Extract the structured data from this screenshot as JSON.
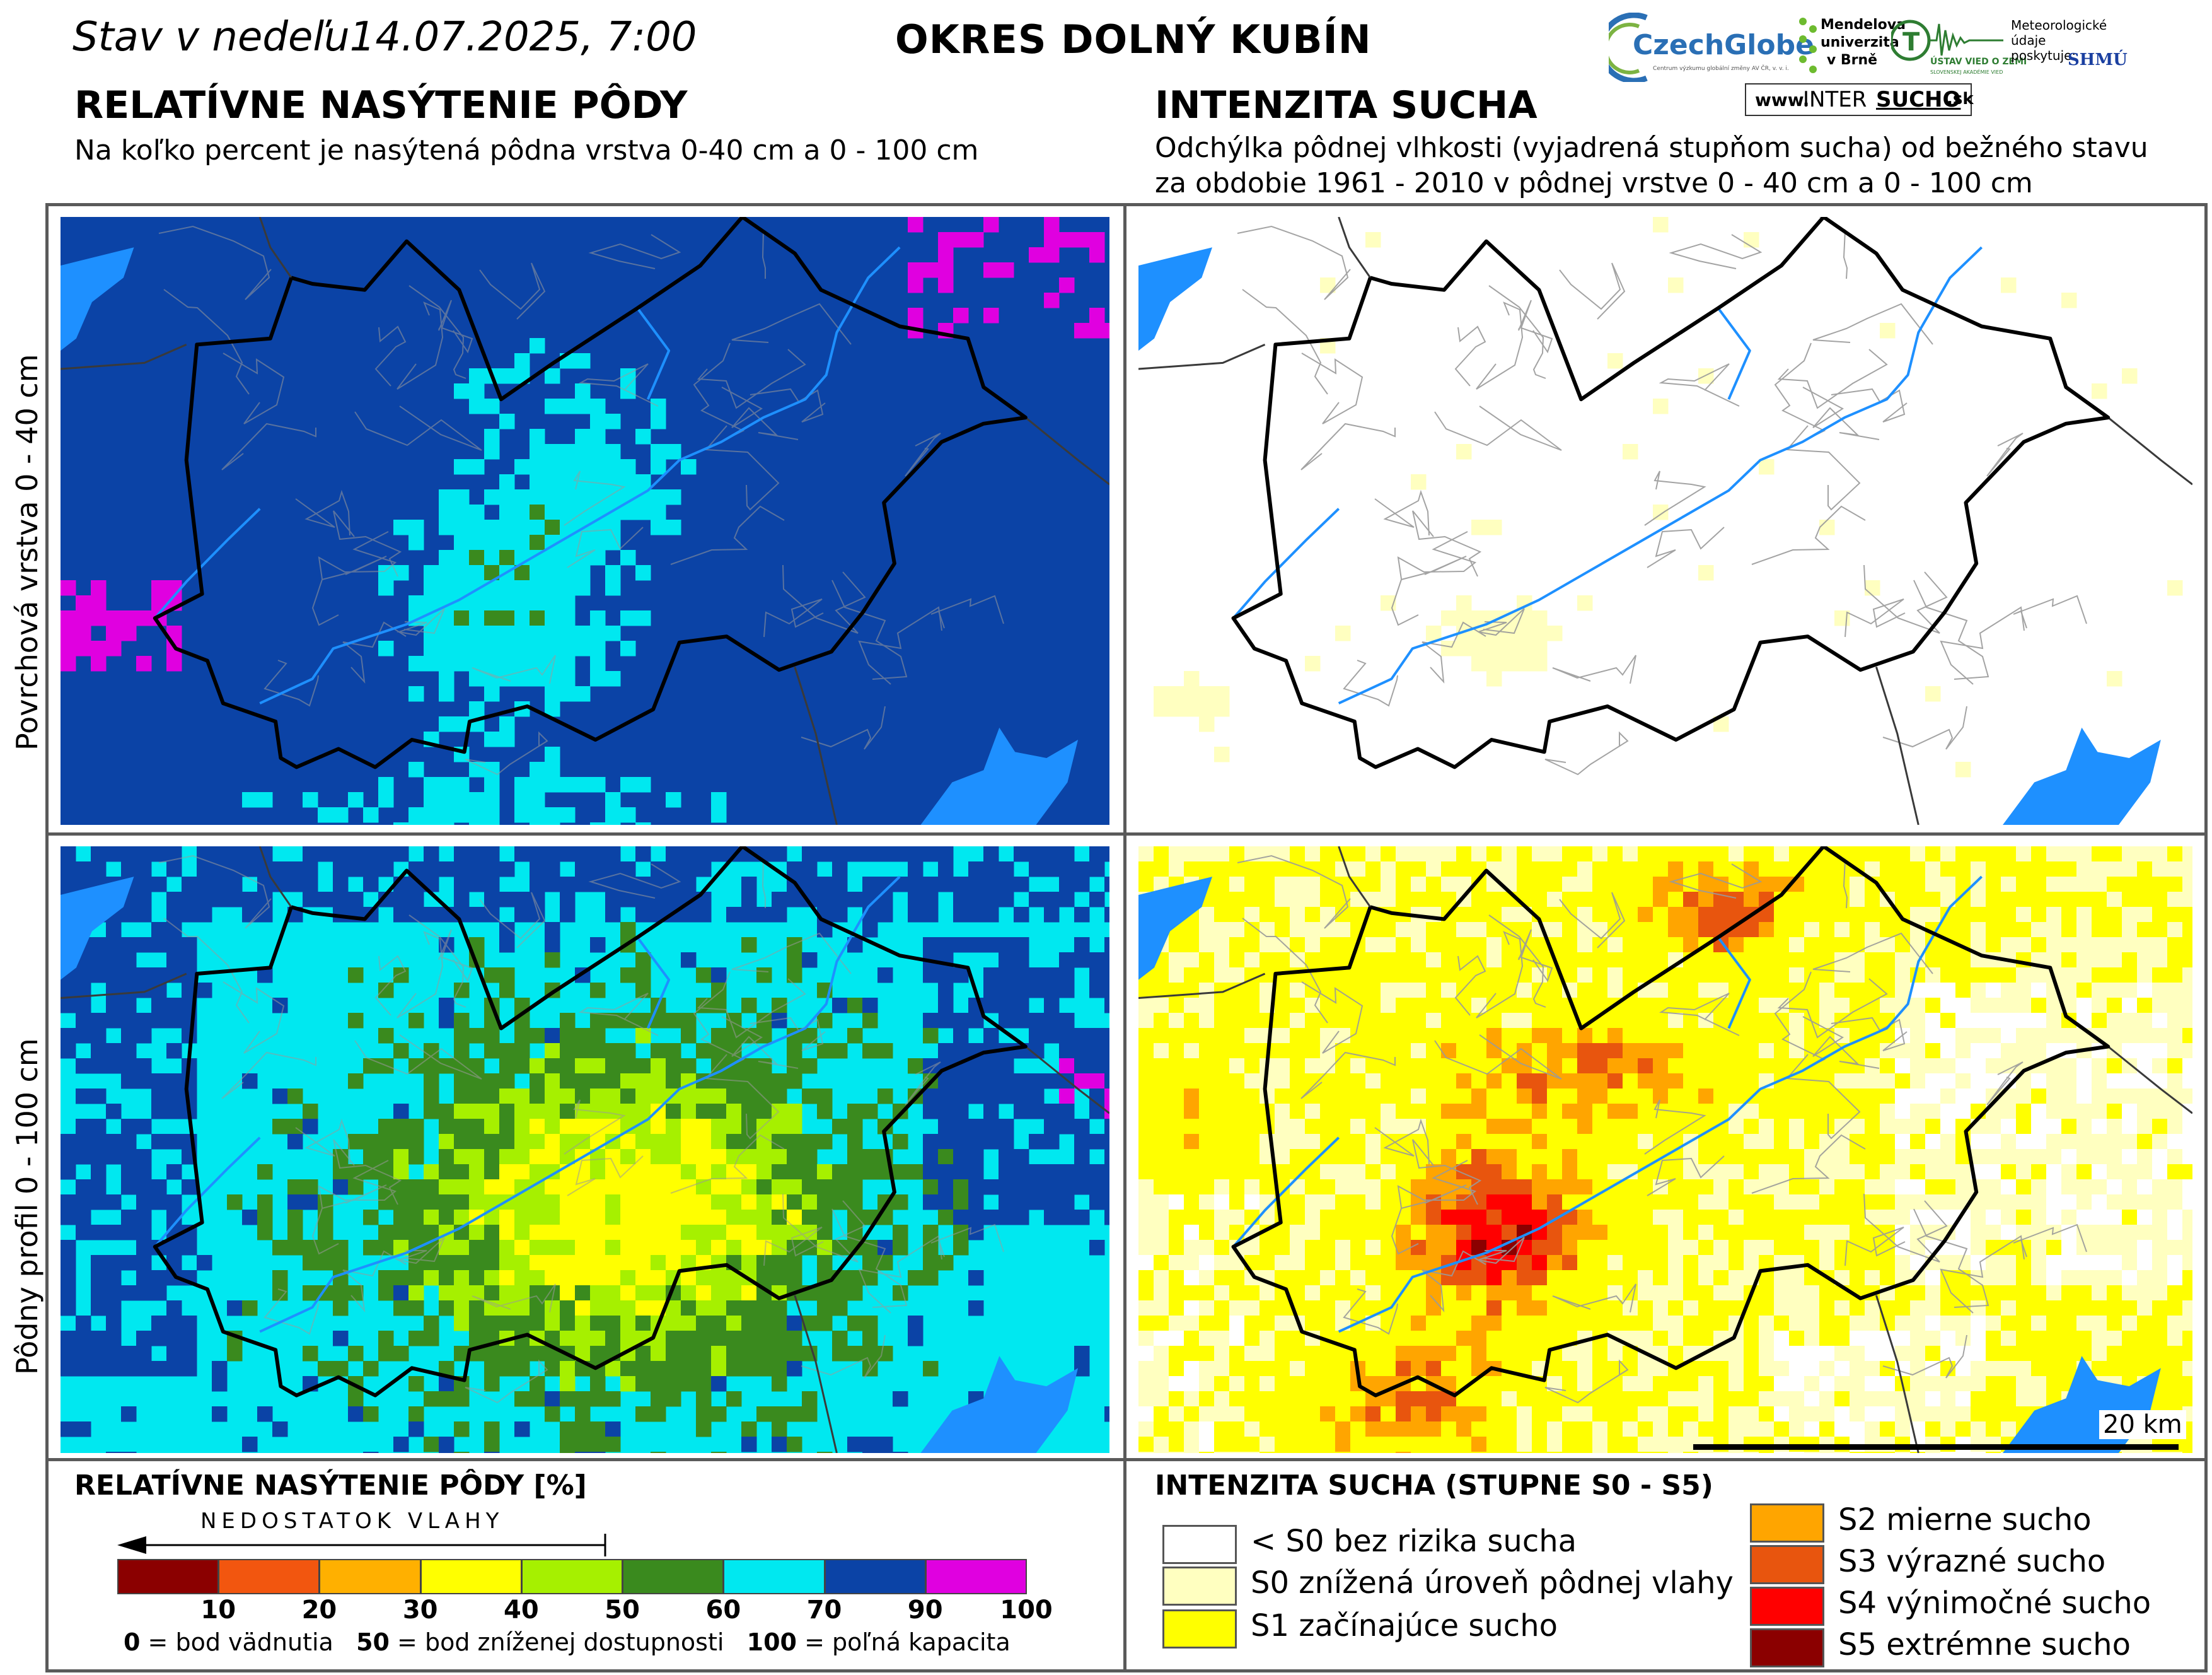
{
  "header": {
    "date_label": "Stav v nedeľu14.07.2025, 7:00",
    "region": "OKRES  DOLNÝ KUBÍN"
  },
  "logos": {
    "czechglobe": "CzechGlobe",
    "czechglobe_sub": "Centrum výzkumu globální změny AV ČR, v. v. i.",
    "mendel": "Mendelova univerzita v Brně",
    "ustav": "ÚSTAV VIED O ZEMI",
    "ustav_sub": "SLOVENSKEJ AKADÉMIE VIED",
    "shmu_text": "Meteorologické údaje poskytuje:",
    "shmu": "SHMÚ",
    "intersucho_prefix": "www.",
    "intersucho_a": "INTER",
    "intersucho_b": "SUCHO",
    "intersucho_c": ".sk"
  },
  "left_section": {
    "title": "RELATÍVNE NASÝTENIE PÔDY",
    "subtitle": "Na koľko percent je nasýtená pôdna vrstva 0-40 cm a 0 - 100 cm"
  },
  "right_section": {
    "title": "INTENZITA SUCHA",
    "subtitle_line1": "Odchýlka pôdnej vlhkosti (vyjadrená stupňom sucha) od bežného stavu",
    "subtitle_line2": "za obdobie 1961 - 2010 v pôdnej vrstve 0 - 40 cm a 0 - 100 cm"
  },
  "row_labels": {
    "top": "Povrchová vrstva 0 - 40 cm",
    "bottom": "Pôdny profil 0 - 100 cm"
  },
  "scale_bar_label": "20 km",
  "legend_saturation": {
    "title": "RELATÍVNE NASÝTENIE PÔDY [%]",
    "arrow_label": "NEDOSTATOK VLAHY",
    "segments": [
      {
        "color": "#8b0000"
      },
      {
        "color": "#f2560f"
      },
      {
        "color": "#ffb000"
      },
      {
        "color": "#ffff00"
      },
      {
        "color": "#a6f000"
      },
      {
        "color": "#3a8a1e"
      },
      {
        "color": "#00e8f0"
      },
      {
        "color": "#0b43a6"
      },
      {
        "color": "#e000e0"
      }
    ],
    "tick_labels": [
      "10",
      "20",
      "30",
      "40",
      "50",
      "60",
      "70",
      "90",
      "100"
    ],
    "note_n0": "0",
    "note_t0": " = bod vädnutia",
    "note_n50": "50",
    "note_t50": " = bod zníženej dostupnosti",
    "note_n100": "100",
    "note_t100": " = poľná kapacita"
  },
  "legend_drought": {
    "title": "INTENZITA SUCHA (STUPNE S0 - S5)",
    "items": [
      {
        "label": "< S0 bez rizika sucha",
        "color": "#ffffff"
      },
      {
        "label": "S0 znížená úroveň pôdnej vlahy",
        "color": "#ffffc0"
      },
      {
        "label": "S1 začínajúce sucho",
        "color": "#ffff00"
      },
      {
        "label": "S2 mierne sucho",
        "color": "#ffa500"
      },
      {
        "label": "S3 výrazné sucho",
        "color": "#e8550e"
      },
      {
        "label": "S4 výnimočné sucho",
        "color": "#ff0000"
      },
      {
        "label": "S5 extrémne sucho",
        "color": "#8b0000"
      }
    ]
  },
  "colors": {
    "river": "#1e90ff",
    "water_body": "#1e90ff",
    "district_border": "#000000",
    "municipal_border": "#9a9a9a"
  }
}
